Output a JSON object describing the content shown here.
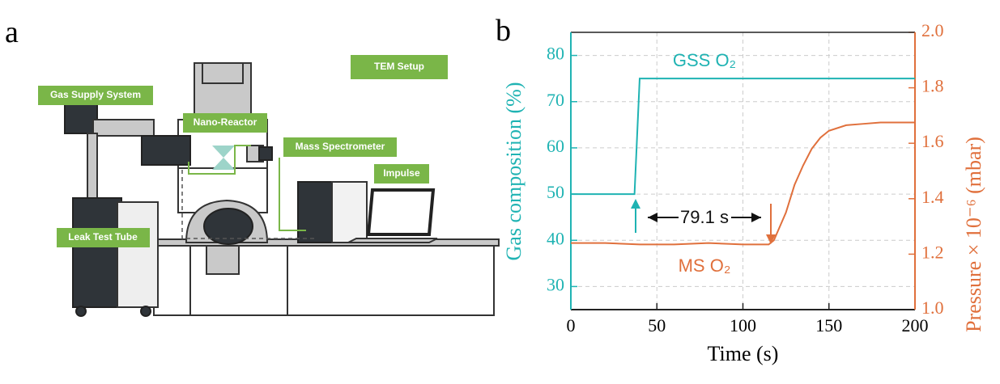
{
  "panel_labels": [
    "a",
    "b"
  ],
  "diagram": {
    "title": "TEM Setup",
    "labels": [
      "Gas Supply System",
      "Nano-Reactor",
      "Mass Spectrometer",
      "Impulse",
      "Leak Test Tube"
    ]
  },
  "chart_data": {
    "type": "line",
    "xlabel": "Time (s)",
    "ylabel": "Gas composition (%)",
    "y2label": "Pressure × 10⁻⁶ (mbar)",
    "xlim": [
      0,
      200
    ],
    "xticks": [
      0,
      50,
      100,
      150,
      200
    ],
    "ylim": [
      25,
      85
    ],
    "yticks": [
      30,
      40,
      50,
      60,
      70,
      80
    ],
    "y2lim": [
      1.0,
      2.0
    ],
    "y2ticks": [
      {
        "value": 1,
        "label": "1.0"
      },
      {
        "value": 1.2,
        "label": "1.2"
      },
      {
        "value": 1.4,
        "label": "1.4"
      },
      {
        "value": 1.6,
        "label": "1.6"
      },
      {
        "value": 1.8,
        "label": "1.8"
      },
      {
        "value": 2,
        "label": "2.0"
      }
    ],
    "grid": true,
    "series": [
      {
        "name": "GSS O₂",
        "color": "#1fb3b3",
        "x": [
          0,
          37,
          40,
          200
        ],
        "values": [
          50,
          50,
          75,
          75
        ]
      },
      {
        "name": "MS O₂",
        "color": "#e0703c",
        "axis": "y2",
        "x": [
          0,
          20,
          40,
          60,
          80,
          100,
          115,
          118,
          125,
          130,
          135,
          140,
          145,
          150,
          160,
          170,
          180,
          190,
          200
        ],
        "values": [
          1.24,
          1.24,
          1.235,
          1.235,
          1.24,
          1.235,
          1.235,
          1.25,
          1.35,
          1.45,
          1.52,
          1.58,
          1.62,
          1.645,
          1.665,
          1.67,
          1.675,
          1.675,
          1.675
        ]
      }
    ],
    "annotations": [
      "79.1 s"
    ]
  }
}
